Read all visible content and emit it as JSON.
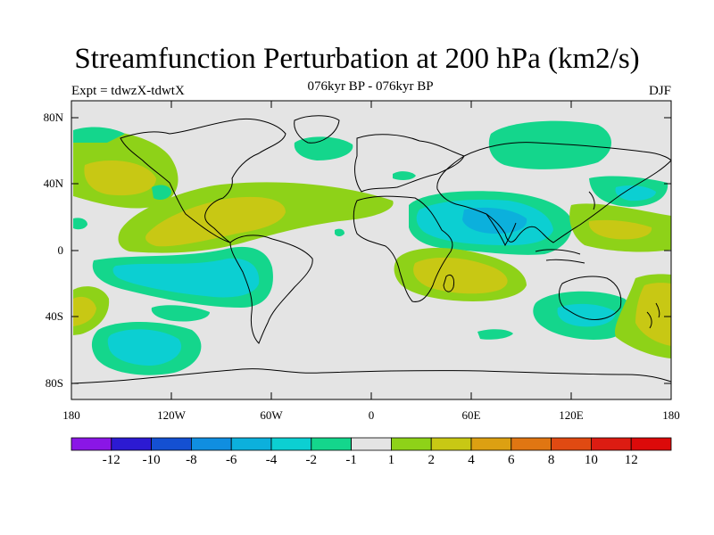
{
  "title": "Streamfunction Perturbation at 200 hPa (km2/s)",
  "subtitle": "076kyr BP - 076kyr BP",
  "left_string": "Expt = tdwzX-tdwtX",
  "right_string": "DJF",
  "lat_labels": [
    "80N",
    "40N",
    "0",
    "40S",
    "80S"
  ],
  "lon_labels": [
    "180",
    "120W",
    "60W",
    "0",
    "60E",
    "120E",
    "180"
  ],
  "colorbar": {
    "labels": [
      "-12",
      "-10",
      "-8",
      "-6",
      "-4",
      "-2",
      "-1",
      "1",
      "2",
      "4",
      "6",
      "8",
      "10",
      "12"
    ],
    "colors": [
      "#8a16e6",
      "#2c1ad2",
      "#1450d2",
      "#108ee0",
      "#0cb0dc",
      "#0ccfd2",
      "#14d68c",
      "#e4e4e4",
      "#8ed218",
      "#c8c814",
      "#dca012",
      "#e07612",
      "#e04a12",
      "#dc1c12",
      "#dc0a0a"
    ]
  },
  "colors": {
    "land_bg": "#e4e4e4",
    "coast": "#000000"
  }
}
